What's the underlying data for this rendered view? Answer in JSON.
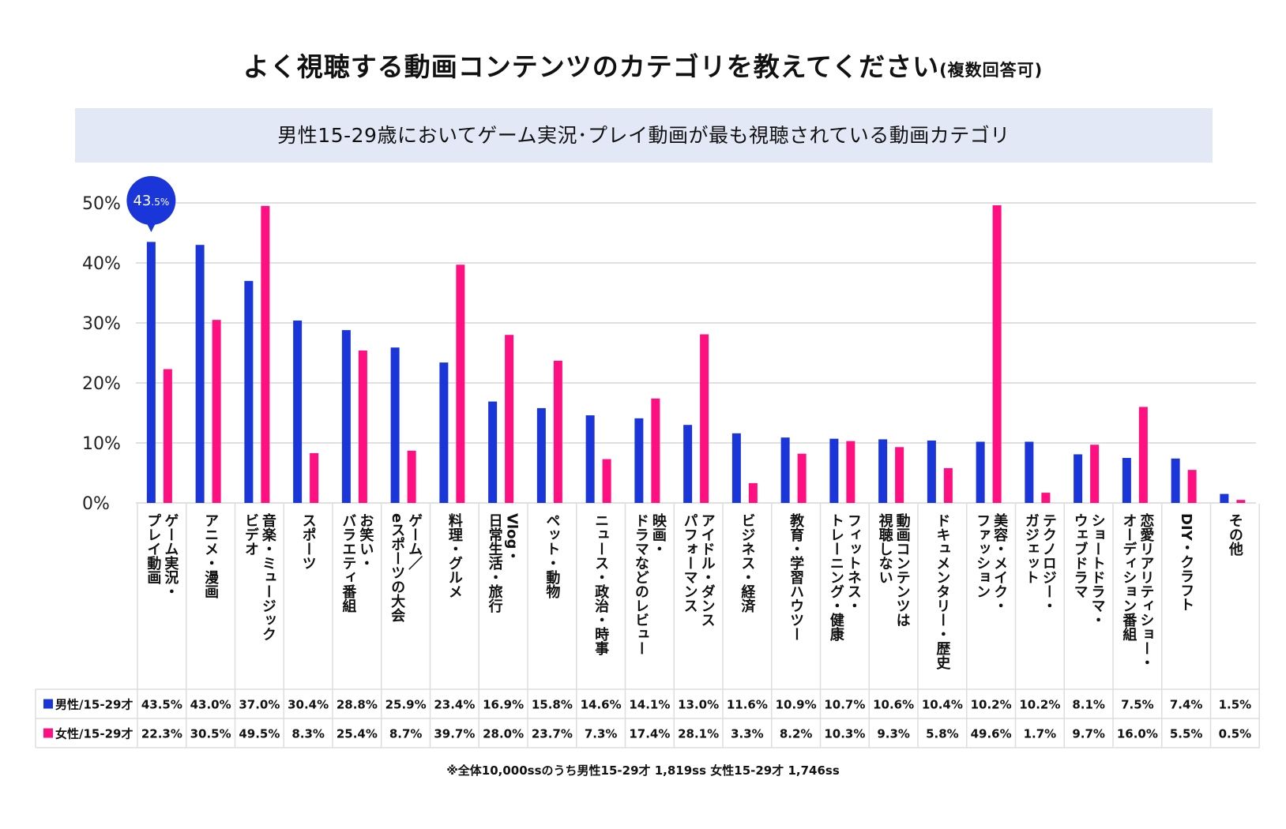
{
  "header": {
    "title": "よく視聴する動画コンテンツのカテゴリを教えてください",
    "title_suffix": "(複数回答可)",
    "subtitle": "男性15-29歳においてゲーム実況･プレイ動画が最も視聴されている動画カテゴリ"
  },
  "footnote": "※全体10,000ssのうち男性15-29才 1,819ss 女性15-29才 1,746ss",
  "colors": {
    "male": "#1a35d8",
    "female": "#ff0f7f",
    "grid": "#d6d6d6",
    "callout": "#1a35d8"
  },
  "callout": {
    "value": "43",
    "unit": ".5%"
  },
  "chart_data": {
    "type": "bar",
    "ylim": [
      0,
      50
    ],
    "yticks": [
      "0%",
      "10%",
      "20%",
      "30%",
      "40%",
      "50%"
    ],
    "categories": [
      [
        "ゲーム実況・",
        "プレイ動画"
      ],
      [
        "アニメ・漫画"
      ],
      [
        "音楽・ミュージック",
        "ビデオ"
      ],
      [
        "スポーツ"
      ],
      [
        "お笑い・",
        "バラエティ番組"
      ],
      [
        "ゲーム／",
        "eスポーツの大会"
      ],
      [
        "料理・グルメ"
      ],
      [
        "Vlog・",
        "日常生活・旅行"
      ],
      [
        "ペット・動物"
      ],
      [
        "ニュース・政治・時事"
      ],
      [
        "映画・",
        "ドラマなどのレビュー"
      ],
      [
        "アイドル・ダンス",
        "パフォーマンス"
      ],
      [
        "ビジネス・経済"
      ],
      [
        "教育・学習ハウツー"
      ],
      [
        "フィットネス・",
        "トレーニング・健康"
      ],
      [
        "動画コンテンツは",
        "視聴しない"
      ],
      [
        "ドキュメンタリー・歴史"
      ],
      [
        "美容・メイク・",
        "ファッション"
      ],
      [
        "テクノロジー・",
        "ガジェット"
      ],
      [
        "ショートドラマ・",
        "ウェブドラマ"
      ],
      [
        "恋愛リアリティショー・",
        "オーディション番組"
      ],
      [
        "DIY・クラフト"
      ],
      [
        "その他"
      ]
    ],
    "series": [
      {
        "name": "男性/15-29才",
        "values": [
          43.5,
          43.0,
          37.0,
          30.4,
          28.8,
          25.9,
          23.4,
          16.9,
          15.8,
          14.6,
          14.1,
          13.0,
          11.6,
          10.9,
          10.7,
          10.6,
          10.4,
          10.2,
          10.2,
          8.1,
          7.5,
          7.4,
          1.5
        ],
        "labels": [
          "43.5%",
          "43.0%",
          "37.0%",
          "30.4%",
          "28.8%",
          "25.9%",
          "23.4%",
          "16.9%",
          "15.8%",
          "14.6%",
          "14.1%",
          "13.0%",
          "11.6%",
          "10.9%",
          "10.7%",
          "10.6%",
          "10.4%",
          "10.2%",
          "10.2%",
          "8.1%",
          "7.5%",
          "7.4%",
          "1.5%"
        ]
      },
      {
        "name": "女性/15-29才",
        "values": [
          22.3,
          30.5,
          49.5,
          8.3,
          25.4,
          8.7,
          39.7,
          28.0,
          23.7,
          7.3,
          17.4,
          28.1,
          3.3,
          8.2,
          10.3,
          9.3,
          5.8,
          49.6,
          1.7,
          9.7,
          16.0,
          5.5,
          0.5
        ],
        "labels": [
          "22.3%",
          "30.5%",
          "49.5%",
          "8.3%",
          "25.4%",
          "8.7%",
          "39.7%",
          "28.0%",
          "23.7%",
          "7.3%",
          "17.4%",
          "28.1%",
          "3.3%",
          "8.2%",
          "10.3%",
          "9.3%",
          "5.8%",
          "49.6%",
          "1.7%",
          "9.7%",
          "16.0%",
          "5.5%",
          "0.5%"
        ]
      }
    ]
  }
}
